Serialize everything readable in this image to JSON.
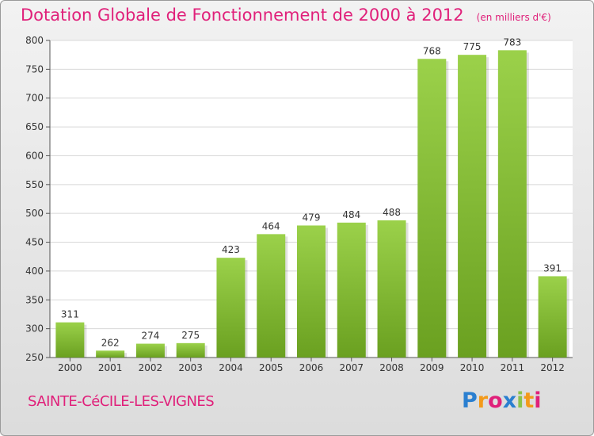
{
  "header": {
    "title": "Dotation Globale de Fonctionnement de 2000 à 2012",
    "subtitle": "(en milliers d'€)"
  },
  "footer": {
    "commune": "SAINTE-CéCILE-LES-VIGNES",
    "logo_letters": [
      "P",
      "r",
      "o",
      "x",
      "i",
      "t",
      "i"
    ],
    "logo_colors": [
      "#2a7fd0",
      "#f39a1a",
      "#e0207a",
      "#2a7fd0",
      "#8bc34a",
      "#f39a1a",
      "#e0207a"
    ]
  },
  "colors": {
    "accent": "#e0207a",
    "bar": "#8cc83c",
    "bar_dark": "#6aa020"
  },
  "chart_data": {
    "type": "bar",
    "categories": [
      "2000",
      "2001",
      "2002",
      "2003",
      "2004",
      "2005",
      "2006",
      "2007",
      "2008",
      "2009",
      "2010",
      "2011",
      "2012"
    ],
    "values": [
      311,
      262,
      274,
      275,
      423,
      464,
      479,
      484,
      488,
      768,
      775,
      783,
      391
    ],
    "title": "Dotation Globale de Fonctionnement de 2000 à 2012",
    "subtitle": "(en milliers d'€)",
    "ylim": [
      250,
      800
    ],
    "yticks": [
      250,
      300,
      350,
      400,
      450,
      500,
      550,
      600,
      650,
      700,
      750,
      800
    ],
    "grid": true
  }
}
